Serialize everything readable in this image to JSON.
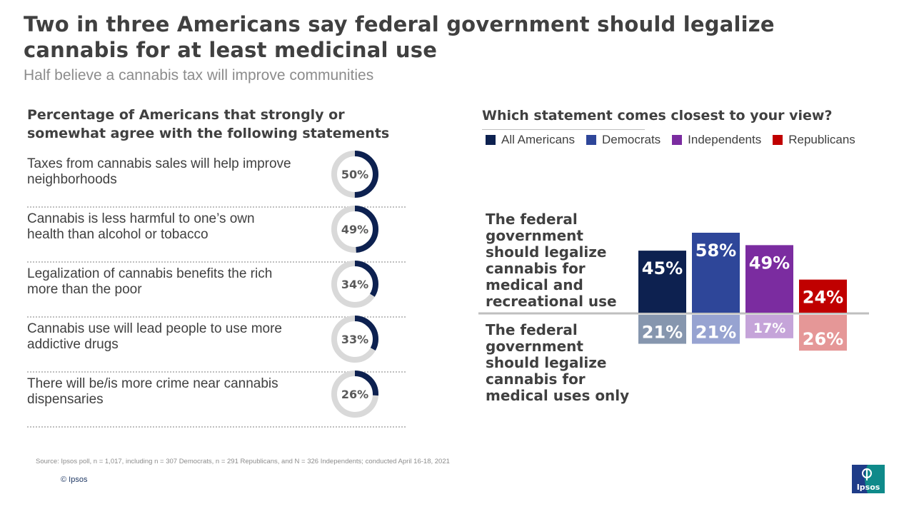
{
  "title": "Two in three Americans say federal government should legalize cannabis for at least medicinal use",
  "subtitle": "Half believe a cannabis tax will improve communities",
  "left_panel": {
    "heading": "Percentage of Americans that strongly or somewhat agree with the following statements",
    "items": [
      {
        "text": "Taxes from cannabis sales will help improve neighborhoods",
        "value": 50,
        "label": "50%"
      },
      {
        "text": "Cannabis is less harmful to one’s own health than alcohol or tobacco",
        "value": 49,
        "label": "49%"
      },
      {
        "text": "Legalization of cannabis benefits the rich more than the poor",
        "value": 34,
        "label": "34%"
      },
      {
        "text": "Cannabis use will lead people to use more addictive drugs",
        "value": 33,
        "label": "33%"
      },
      {
        "text": "There will be/is more crime near cannabis dispensaries",
        "value": 26,
        "label": "26%"
      }
    ],
    "donut_fill_color": "#0d2150",
    "donut_track_color": "#d9d9d9"
  },
  "right_panel": {
    "heading": "Which statement comes closest to your view?"
  },
  "chart_data": {
    "type": "bar",
    "legend_position": "top",
    "categories": [
      "The federal government should legalize cannabis for medical and recreational use",
      "The federal government should legalize cannabis for medical uses only"
    ],
    "series": [
      {
        "name": "All Americans",
        "color": "#0d2150",
        "light_color": "#8696ae",
        "values": [
          45,
          21
        ],
        "labels": [
          "45%",
          "21%"
        ]
      },
      {
        "name": "Democrats",
        "color": "#2e4699",
        "light_color": "#97a3d1",
        "values": [
          58,
          21
        ],
        "labels": [
          "58%",
          "21%"
        ]
      },
      {
        "name": "Independents",
        "color": "#7b2ca0",
        "light_color": "#c5a4d9",
        "values": [
          49,
          17
        ],
        "labels": [
          "49%",
          "17%"
        ]
      },
      {
        "name": "Republicans",
        "color": "#c00000",
        "light_color": "#e59797",
        "values": [
          24,
          26
        ],
        "labels": [
          "24%",
          "26%"
        ]
      }
    ]
  },
  "footer": {
    "source": "Source: Ipsos poll, n = 1,017, including n = 307 Democrats, n = 291 Republicans, and N = 326 Independents; conducted April 16-18, 2021",
    "copyright": "© Ipsos",
    "logo_text": "Ipsos",
    "logo_color": "#0f8a8a",
    "logo_dark_color": "#1f3c88"
  }
}
